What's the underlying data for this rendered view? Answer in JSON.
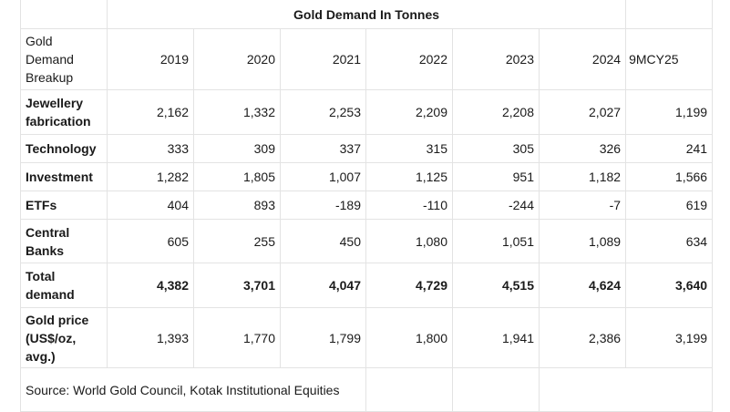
{
  "title": "Gold Demand In Tonnes",
  "header": {
    "label": "Gold Demand Breakup",
    "columns": [
      "2019",
      "2020",
      "2021",
      "2022",
      "2023",
      "2024",
      "9MCY25"
    ]
  },
  "rows": [
    {
      "label": "Jewellery fabrication",
      "values": [
        "2,162",
        "1,332",
        "2,253",
        "2,209",
        "2,208",
        "2,027",
        "1,199"
      ]
    },
    {
      "label": "Technology",
      "values": [
        "333",
        "309",
        "337",
        "315",
        "305",
        "326",
        "241"
      ]
    },
    {
      "label": "Investment",
      "values": [
        "1,282",
        "1,805",
        "1,007",
        "1,125",
        "951",
        "1,182",
        "1,566"
      ]
    },
    {
      "label": "ETFs",
      "values": [
        "404",
        "893",
        "-189",
        "-110",
        "-244",
        "-7",
        "619"
      ]
    },
    {
      "label": "Central Banks",
      "values": [
        "605",
        "255",
        "450",
        "1,080",
        "1,051",
        "1,089",
        "634"
      ]
    },
    {
      "label": "Total demand",
      "values": [
        "4,382",
        "3,701",
        "4,047",
        "4,729",
        "4,515",
        "4,624",
        "3,640"
      ]
    },
    {
      "label": "Gold price (US$/oz, avg.)",
      "values": [
        "1,393",
        "1,770",
        "1,799",
        "1,800",
        "1,941",
        "2,386",
        "3,199"
      ]
    }
  ],
  "source": "Source: World Gold Council, Kotak Institutional Equities"
}
